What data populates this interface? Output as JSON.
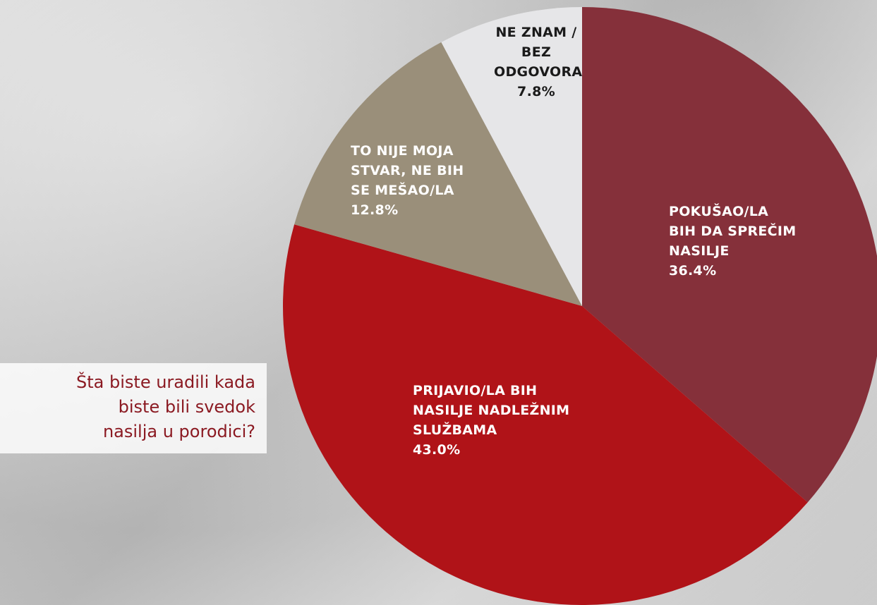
{
  "chart_data": {
    "type": "pie",
    "question": "Šta biste uradili kada\nbiste bili svedok\nnasilja u porodici?",
    "categories": [
      "POKUŠAO/LA\nBIH DA SPREČIM\nNASILJE",
      "PRIJAVIO/LA BIH\nNASILJE NADLEŽNIM\nSLUŽBAMA",
      "TO NIJE MOJA\nSTVAR, NE BIH\nSE MEŠAO/LA",
      "NE ZNAM /\nBEZ\nODGOVORA"
    ],
    "values": [
      36.4,
      43.0,
      12.8,
      7.8
    ],
    "value_labels": [
      "36.4%",
      "43.0%",
      "12.8%",
      "7.8%"
    ],
    "colors": [
      "#85303a",
      "#b01318",
      "#9a8f7a",
      "#e6e6e8"
    ],
    "label_colors": [
      "#ffffff",
      "#ffffff",
      "#ffffff",
      "#1a1a1a"
    ]
  }
}
